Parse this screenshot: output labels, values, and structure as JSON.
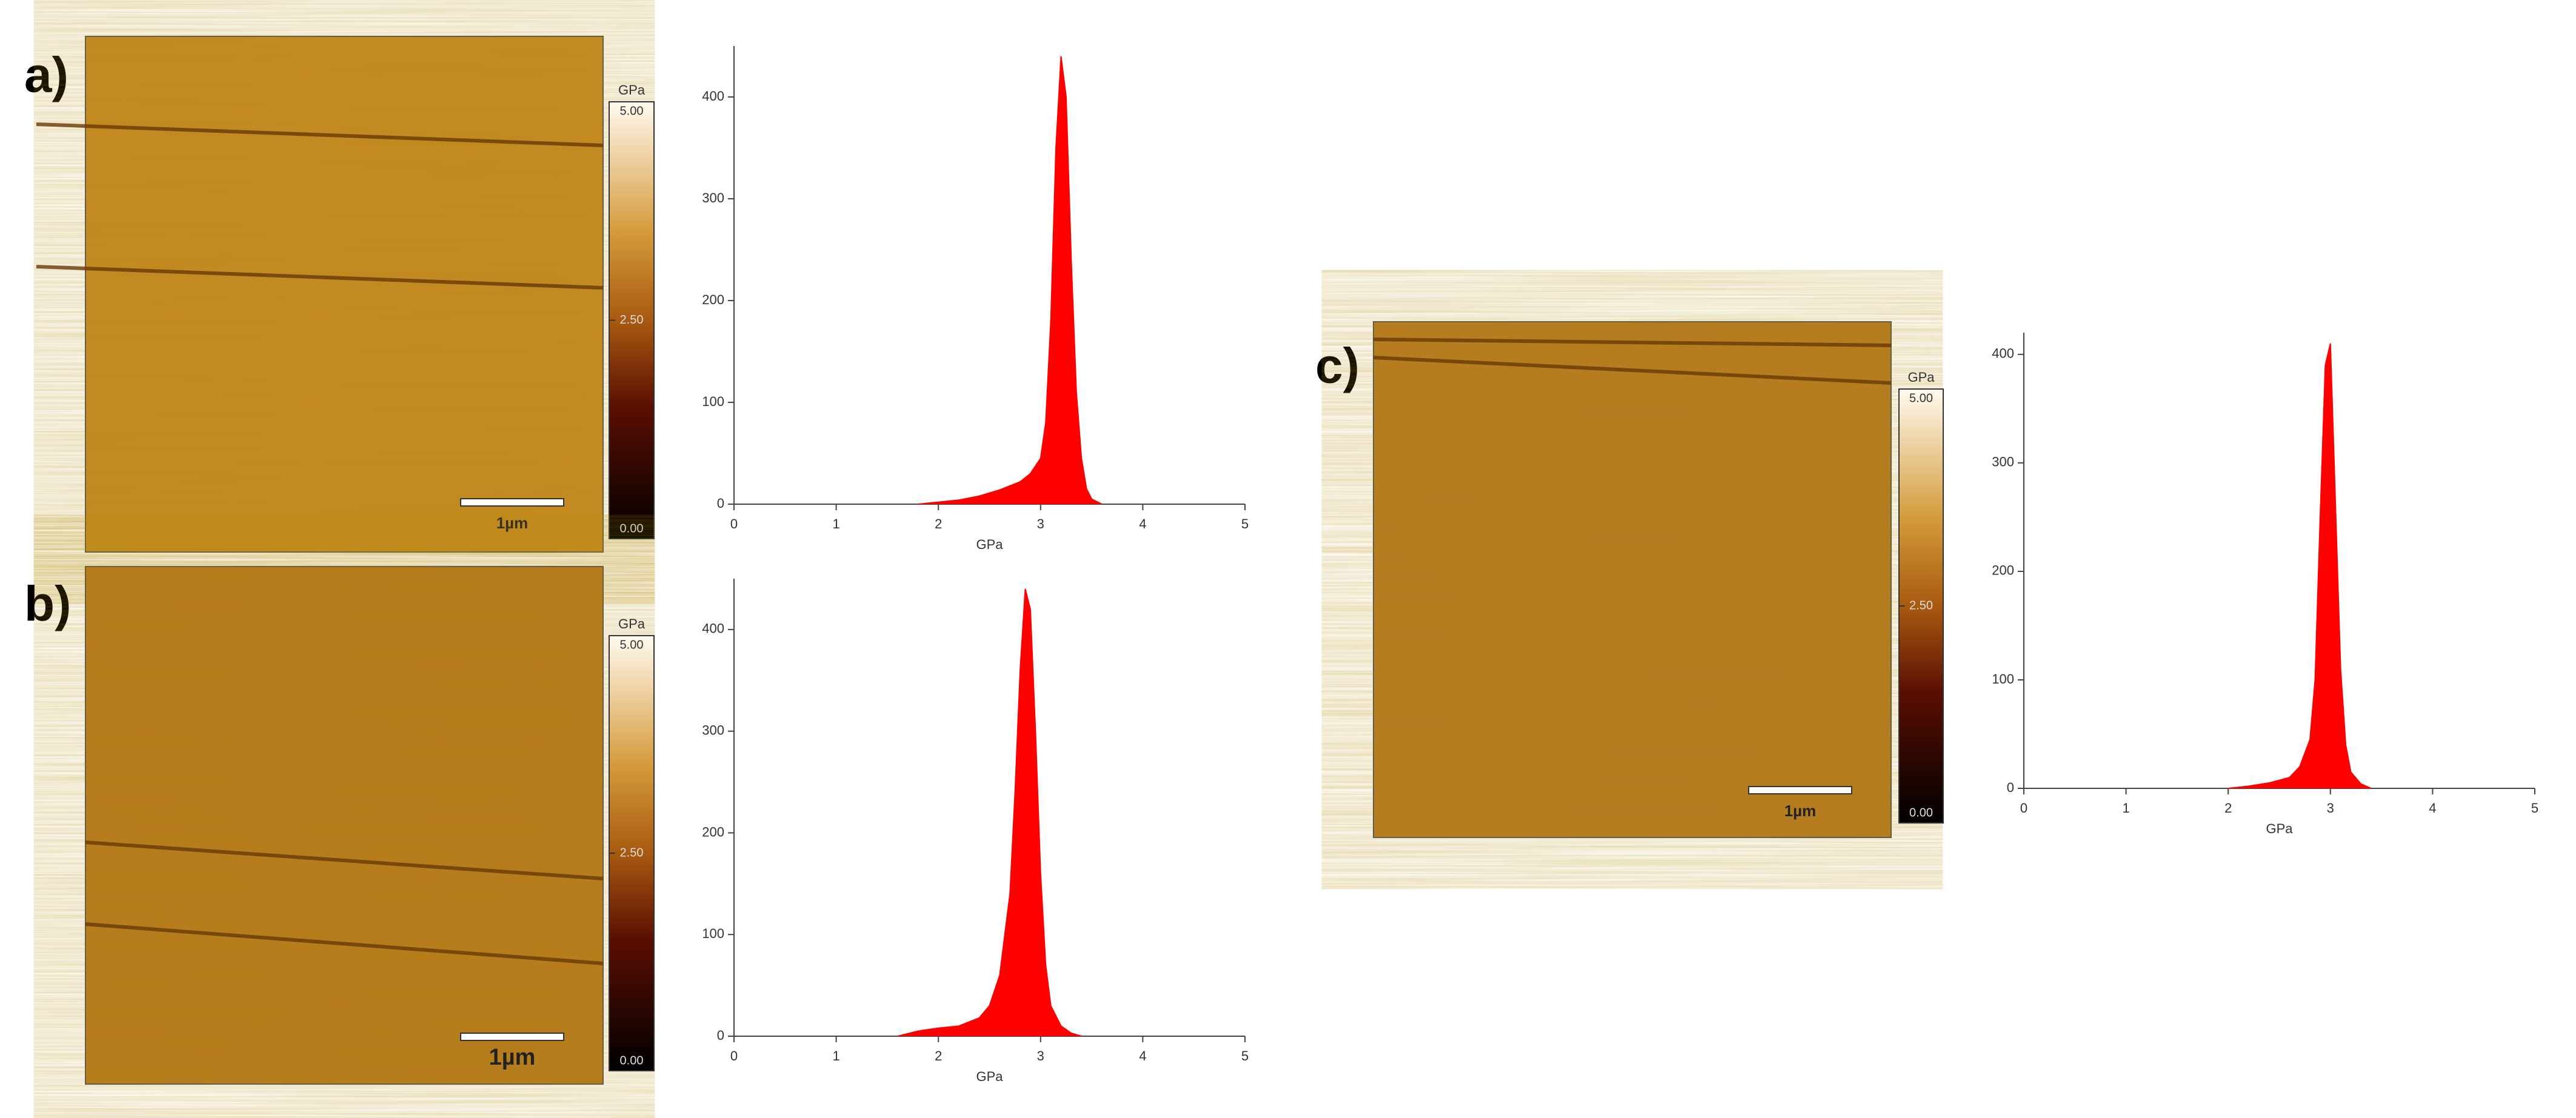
{
  "panels": [
    {
      "label": "a)",
      "scalebar": "1µm",
      "colorbar": {
        "unit": "GPa",
        "lim": [
          0,
          5
        ],
        "ticks": [
          {
            "value": 5,
            "label": "5.00"
          },
          {
            "value": 2.5,
            "label": "2.50"
          },
          {
            "value": 0,
            "label": "0.00"
          }
        ]
      }
    },
    {
      "label": "b)",
      "scalebar": "1µm",
      "colorbar": {
        "unit": "GPa",
        "lim": [
          0,
          5
        ],
        "ticks": [
          {
            "value": 5,
            "label": "5.00"
          },
          {
            "value": 2.5,
            "label": "2.50"
          },
          {
            "value": 0,
            "label": "0.00"
          }
        ]
      }
    },
    {
      "label": "c)",
      "scalebar": "1µm",
      "colorbar": {
        "unit": "GPa",
        "lim": [
          0,
          5
        ],
        "ticks": [
          {
            "value": 5,
            "label": "5.00"
          },
          {
            "value": 2.5,
            "label": "2.50"
          },
          {
            "value": 0,
            "label": "0.00"
          }
        ]
      }
    }
  ],
  "chart_data": [
    {
      "type": "area",
      "color": "#ff0000",
      "xlabel": "GPa",
      "xlim": [
        0,
        5
      ],
      "ylim": [
        0,
        450
      ],
      "xticks": [
        0,
        1,
        2,
        3,
        4,
        5
      ],
      "yticks": [
        0,
        100,
        200,
        300,
        400
      ],
      "x": [
        1.8,
        2.0,
        2.2,
        2.4,
        2.6,
        2.8,
        2.9,
        3.0,
        3.05,
        3.1,
        3.15,
        3.2,
        3.25,
        3.3,
        3.35,
        3.4,
        3.45,
        3.5,
        3.6
      ],
      "values": [
        0,
        2,
        4,
        8,
        14,
        22,
        30,
        45,
        80,
        180,
        350,
        440,
        400,
        240,
        110,
        45,
        15,
        5,
        0
      ]
    },
    {
      "type": "area",
      "color": "#ff0000",
      "xlabel": "GPa",
      "xlim": [
        0,
        5
      ],
      "ylim": [
        0,
        450
      ],
      "xticks": [
        0,
        1,
        2,
        3,
        4,
        5
      ],
      "yticks": [
        0,
        100,
        200,
        300,
        400
      ],
      "x": [
        1.6,
        1.8,
        2.0,
        2.2,
        2.4,
        2.5,
        2.6,
        2.7,
        2.75,
        2.8,
        2.85,
        2.9,
        2.95,
        3.0,
        3.05,
        3.1,
        3.2,
        3.3,
        3.4
      ],
      "values": [
        0,
        5,
        8,
        10,
        18,
        30,
        60,
        140,
        240,
        360,
        440,
        420,
        300,
        160,
        70,
        30,
        10,
        3,
        0
      ]
    },
    {
      "type": "area",
      "color": "#ff0000",
      "xlabel": "GPa",
      "xlim": [
        0,
        5
      ],
      "ylim": [
        0,
        420
      ],
      "xticks": [
        0,
        1,
        2,
        3,
        4,
        5
      ],
      "yticks": [
        0,
        100,
        200,
        300,
        400
      ],
      "x": [
        2.0,
        2.2,
        2.4,
        2.6,
        2.7,
        2.8,
        2.85,
        2.9,
        2.95,
        3.0,
        3.05,
        3.1,
        3.15,
        3.2,
        3.3,
        3.4
      ],
      "values": [
        0,
        2,
        5,
        10,
        20,
        45,
        100,
        250,
        390,
        410,
        260,
        110,
        40,
        15,
        4,
        0
      ]
    }
  ]
}
